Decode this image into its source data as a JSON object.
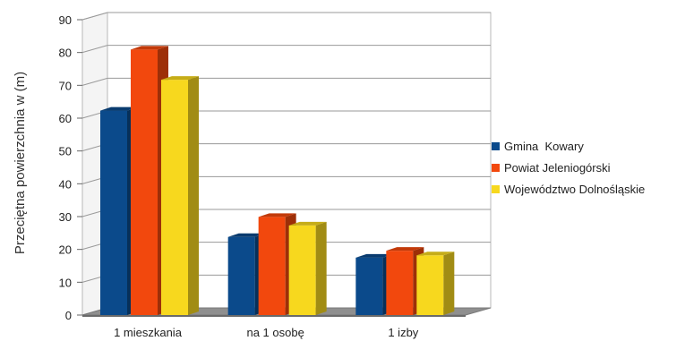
{
  "chart_data": {
    "type": "bar",
    "title": "",
    "xlabel": "",
    "ylabel": "Przeciętna powierzchnia w (m)",
    "ylim": [
      0,
      90
    ],
    "yticks": [
      0,
      10,
      20,
      30,
      40,
      50,
      60,
      70,
      80,
      90
    ],
    "grid": true,
    "legend_position": "right",
    "categories": [
      "1 mieszkania",
      "na 1 osobę",
      "1 izby"
    ],
    "series": [
      {
        "name": "Gmina  Kowary",
        "color": "#0b4a8b",
        "values": [
          62.3,
          23.8,
          17.5
        ]
      },
      {
        "name": "Powiat Jeleniogórski",
        "color": "#f2480d",
        "values": [
          80.9,
          29.9,
          19.6
        ]
      },
      {
        "name": "Województwo Dolnośląskie",
        "color": "#f7d81e",
        "values": [
          71.7,
          27.3,
          18.2
        ]
      }
    ]
  }
}
